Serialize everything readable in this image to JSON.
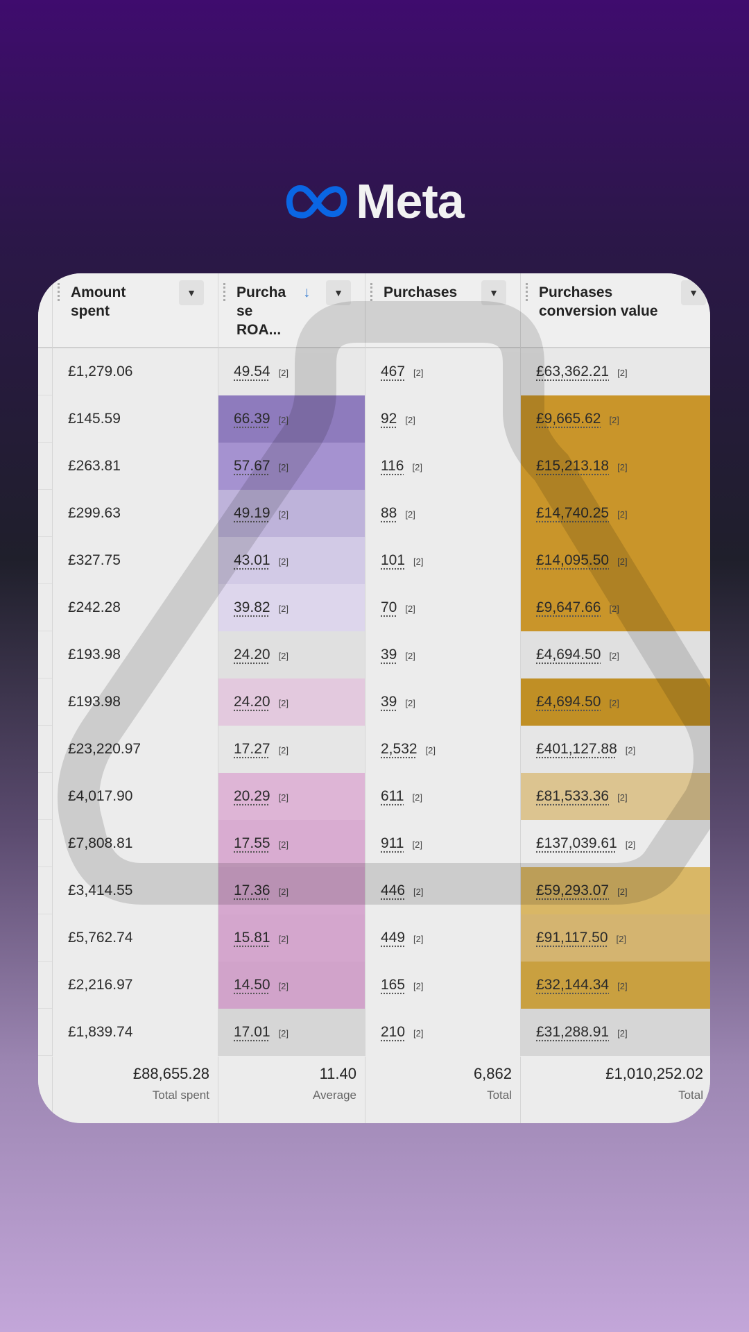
{
  "columns": [
    {
      "label": "Amount spent"
    },
    {
      "label": "Purcha se ROA...",
      "sort_icon": "arrow-down-icon"
    },
    {
      "label": "Purchases"
    },
    {
      "label": "Purchases conversion value"
    }
  ],
  "rows": [
    {
      "amount": "£1,279.06",
      "roas": "49.54",
      "purchases": "467",
      "value": "£63,362.21",
      "roas_color": "#e8e8e8",
      "value_color": "#e8e8e8"
    },
    {
      "amount": "£145.59",
      "roas": "66.39",
      "purchases": "92",
      "value": "£9,665.62",
      "roas_color": "#8e7bbd",
      "value_color": "#c9952a"
    },
    {
      "amount": "£263.81",
      "roas": "57.67",
      "purchases": "116",
      "value": "£15,213.18",
      "roas_color": "#a592d0",
      "value_color": "#c9952a"
    },
    {
      "amount": "£299.63",
      "roas": "49.19",
      "purchases": "88",
      "value": "£14,740.25",
      "roas_color": "#beb3da",
      "value_color": "#c9952a"
    },
    {
      "amount": "£327.75",
      "roas": "43.01",
      "purchases": "101",
      "value": "£14,095.50",
      "roas_color": "#d2cae6",
      "value_color": "#c9952a"
    },
    {
      "amount": "£242.28",
      "roas": "39.82",
      "purchases": "70",
      "value": "£9,647.66",
      "roas_color": "#ddd6ec",
      "value_color": "#c9952a"
    },
    {
      "amount": "£193.98",
      "roas": "24.20",
      "purchases": "39",
      "value": "£4,694.50",
      "roas_color": "#e0e0e0",
      "value_color": "#e0e0e0"
    },
    {
      "amount": "£193.98",
      "roas": "24.20",
      "purchases": "39",
      "value": "£4,694.50",
      "roas_color": "#e3c9de",
      "value_color": "#c08f25"
    },
    {
      "amount": "£23,220.97",
      "roas": "17.27",
      "purchases": "2,532",
      "value": "£401,127.88",
      "roas_color": "#e6e6e6",
      "value_color": "#e6e6e6"
    },
    {
      "amount": "£4,017.90",
      "roas": "20.29",
      "purchases": "611",
      "value": "£81,533.36",
      "roas_color": "#deb5d6",
      "value_color": "#dcc490"
    },
    {
      "amount": "£7,808.81",
      "roas": "17.55",
      "purchases": "911",
      "value": "£137,039.61",
      "roas_color": "#d9acd1",
      "value_color": "#ececec"
    },
    {
      "amount": "£3,414.55",
      "roas": "17.36",
      "purchases": "446",
      "value": "£59,293.07",
      "roas_color": "#d6a8cf",
      "value_color": "#d9b766"
    },
    {
      "amount": "£5,762.74",
      "roas": "15.81",
      "purchases": "449",
      "value": "£91,117.50",
      "roas_color": "#d4a6cd",
      "value_color": "#d4b470"
    },
    {
      "amount": "£2,216.97",
      "roas": "14.50",
      "purchases": "165",
      "value": "£32,144.34",
      "roas_color": "#d1a3ca",
      "value_color": "#c9a040"
    },
    {
      "amount": "£1,839.74",
      "roas": "17.01",
      "purchases": "210",
      "value": "£31,288.91",
      "roas_color": "#d6d6d6",
      "value_color": "#d6d6d6"
    }
  ],
  "badge": "[2]",
  "footer": [
    {
      "value": "£88,655.28",
      "label": "Total spent"
    },
    {
      "value": "11.40",
      "label": "Average"
    },
    {
      "value": "6,862",
      "label": "Total"
    },
    {
      "value": "£1,010,252.02",
      "label": "Total"
    }
  ],
  "logo": "Meta",
  "colors": {
    "meta_blue": "#0a66e4"
  }
}
